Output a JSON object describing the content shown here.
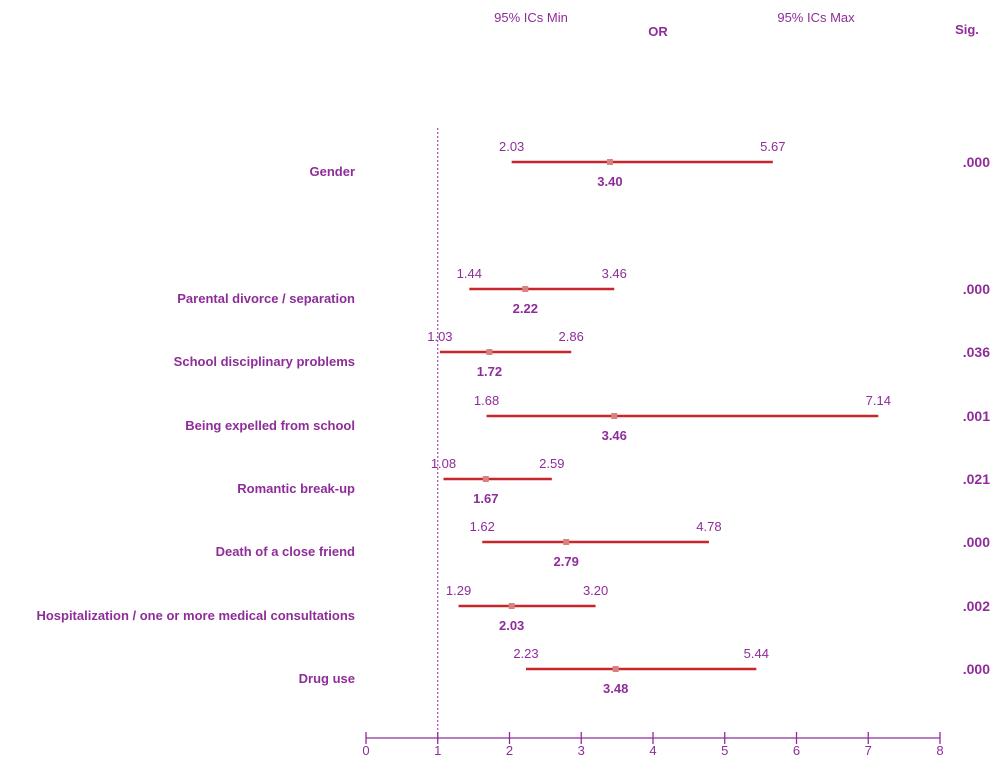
{
  "headers": {
    "ci_min": "95% ICs Min",
    "or": "OR",
    "ci_max": "95% ICs Max",
    "sig": "Sig."
  },
  "colors": {
    "text": "#8e2d9a",
    "bar": "#c8262a",
    "marker": "#d98080",
    "axis": "#8e2d9a",
    "reference_line": "#8e2d9a"
  },
  "chart_data": {
    "type": "forest",
    "xlim": [
      0,
      8
    ],
    "x_ticks": [
      0,
      1,
      2,
      3,
      4,
      5,
      6,
      7,
      8
    ],
    "x_tick_labels": [
      "0",
      "1",
      "2",
      "3",
      "4",
      "5",
      "6",
      "7",
      "8"
    ],
    "reference_value": 1,
    "grid": false,
    "rows": [
      {
        "label": "Gender",
        "or": 3.4,
        "ci_min": 2.03,
        "ci_max": 5.67,
        "or_text": "3.40",
        "ci_min_text": "2.03",
        "ci_max_text": "5.67",
        "sig": ".000"
      },
      {
        "label": "Parental divorce / separation",
        "or": 2.22,
        "ci_min": 1.44,
        "ci_max": 3.46,
        "or_text": "2.22",
        "ci_min_text": "1.44",
        "ci_max_text": "3.46",
        "sig": ".000"
      },
      {
        "label": "School disciplinary  problems",
        "or": 1.72,
        "ci_min": 1.03,
        "ci_max": 2.86,
        "or_text": "1.72",
        "ci_min_text": "1.03",
        "ci_max_text": "2.86",
        "sig": ".036"
      },
      {
        "label": "Being expelled from school",
        "or": 3.46,
        "ci_min": 1.68,
        "ci_max": 7.14,
        "or_text": "3.46",
        "ci_min_text": "1.68",
        "ci_max_text": "7.14",
        "sig": ".001"
      },
      {
        "label": "Romantic  break-up",
        "or": 1.67,
        "ci_min": 1.08,
        "ci_max": 2.59,
        "or_text": "1.67",
        "ci_min_text": "1.08",
        "ci_max_text": "2.59",
        "sig": ".021"
      },
      {
        "label": "Death of a close friend",
        "or": 2.79,
        "ci_min": 1.62,
        "ci_max": 4.78,
        "or_text": "2.79",
        "ci_min_text": "1.62",
        "ci_max_text": "4.78",
        "sig": ".000"
      },
      {
        "label": "Hospitalization  / one or more medical consultations",
        "or": 2.03,
        "ci_min": 1.29,
        "ci_max": 3.2,
        "or_text": "2.03",
        "ci_min_text": "1.29",
        "ci_max_text": "3.20",
        "sig": ".002"
      },
      {
        "label": "Drug use",
        "or": 3.48,
        "ci_min": 2.23,
        "ci_max": 5.44,
        "or_text": "3.48",
        "ci_min_text": "2.23",
        "ci_max_text": "5.44",
        "sig": ".000"
      }
    ]
  }
}
